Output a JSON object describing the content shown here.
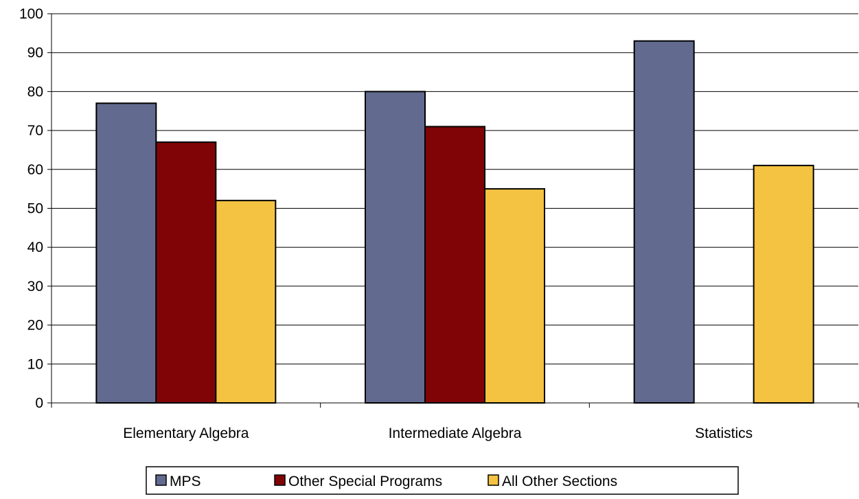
{
  "chart_data": {
    "type": "bar",
    "categories": [
      "Elementary Algebra",
      "Intermediate Algebra",
      "Statistics"
    ],
    "series": [
      {
        "name": "MPS",
        "color": "#626b8f",
        "values": [
          77,
          80,
          93
        ]
      },
      {
        "name": "Other Special Programs",
        "color": "#800406",
        "values": [
          67,
          71,
          null
        ]
      },
      {
        "name": "All Other Sections",
        "color": "#f5c342",
        "values": [
          52,
          55,
          61
        ]
      }
    ],
    "ylim": [
      0,
      100
    ],
    "yticks": [
      "0",
      "10",
      "20",
      "30",
      "40",
      "50",
      "60",
      "70",
      "80",
      "90",
      "100"
    ],
    "title": "",
    "xlabel": "",
    "ylabel": "",
    "grid": true,
    "legend_position": "bottom"
  }
}
